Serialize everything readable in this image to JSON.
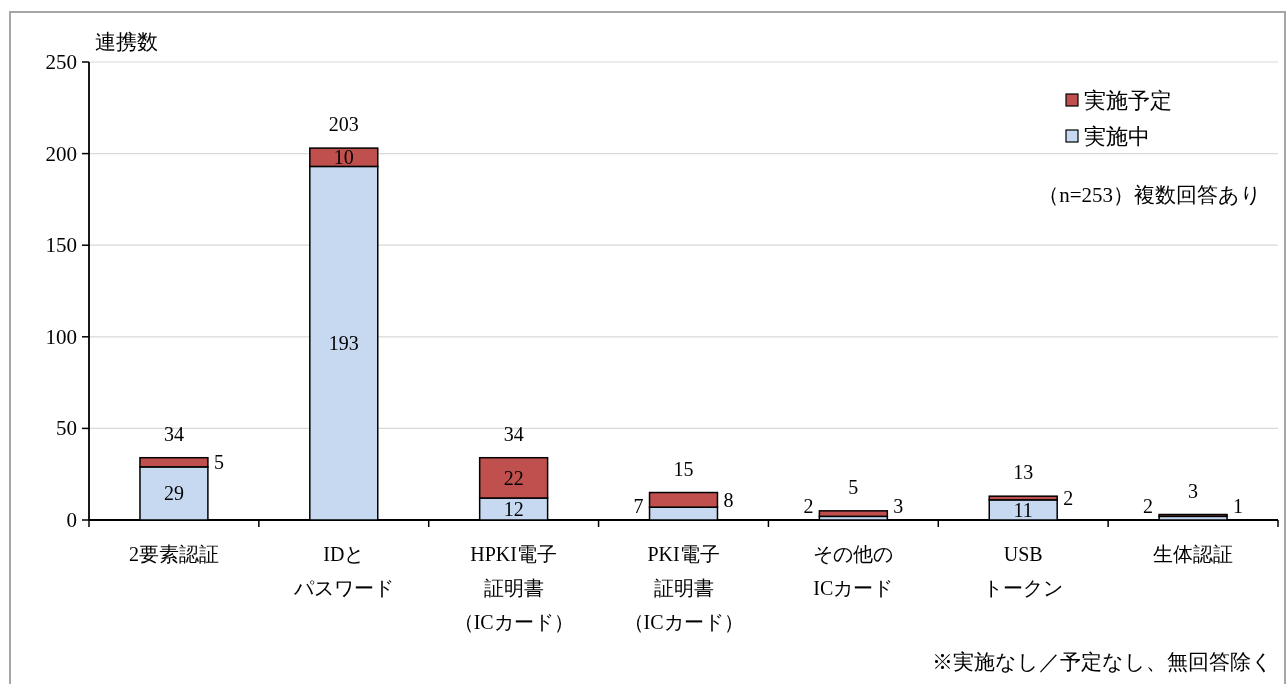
{
  "chart_data": {
    "type": "bar",
    "stacked": true,
    "ylabel": "連携数",
    "categories": [
      "2要素認証",
      "IDとパスワード",
      "HPKI電子証明書（ICカード）",
      "PKI電子証明書（ICカード）",
      "その他のICカード",
      "USBトークン",
      "生体認証"
    ],
    "series": [
      {
        "name": "実施中",
        "color": "#c6d9f1",
        "values": [
          29,
          193,
          12,
          7,
          2,
          11,
          2
        ]
      },
      {
        "name": "実施予定",
        "color": "#c0504d",
        "values": [
          5,
          10,
          22,
          8,
          3,
          2,
          1
        ]
      }
    ],
    "ylim": [
      0,
      250
    ],
    "yticks": [
      0,
      50,
      100,
      150,
      200,
      250
    ],
    "grid": "y",
    "legend": "top right",
    "data_labels": true,
    "totals": [
      "34",
      "203",
      "34",
      "15",
      "5",
      "13",
      "3"
    ],
    "annotations": [
      "（n=253）複数回答あり",
      "※実施なし／予定なし、無回答除く"
    ]
  }
}
